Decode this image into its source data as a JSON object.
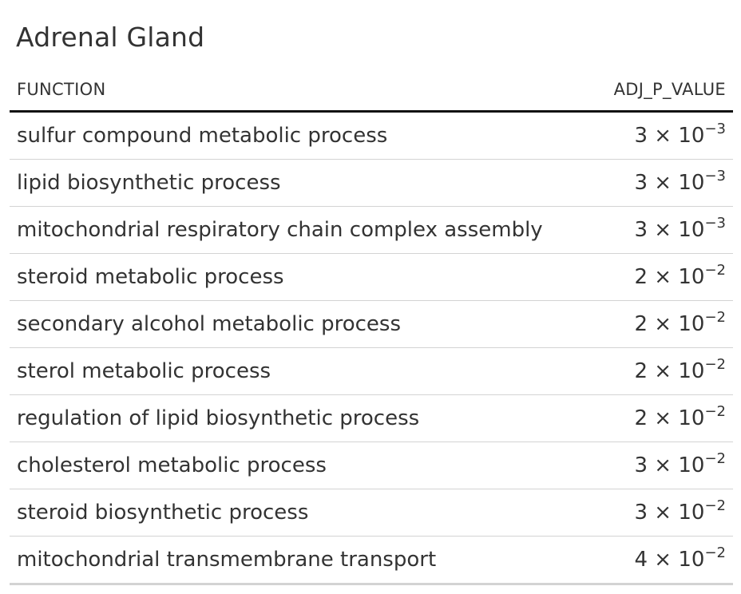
{
  "title": "Adrenal Gland",
  "table": {
    "headers": {
      "function": "FUNCTION",
      "adj_p_value": "ADJ_P_VALUE"
    },
    "rows": [
      {
        "function": "sulfur compound metabolic process",
        "mantissa": "3 × 10",
        "exponent": "−3"
      },
      {
        "function": "lipid biosynthetic process",
        "mantissa": "3 × 10",
        "exponent": "−3"
      },
      {
        "function": "mitochondrial respiratory chain complex assembly",
        "mantissa": "3 × 10",
        "exponent": "−3"
      },
      {
        "function": "steroid metabolic process",
        "mantissa": "2 × 10",
        "exponent": "−2"
      },
      {
        "function": "secondary alcohol metabolic process",
        "mantissa": "2 × 10",
        "exponent": "−2"
      },
      {
        "function": "sterol metabolic process",
        "mantissa": "2 × 10",
        "exponent": "−2"
      },
      {
        "function": "regulation of lipid biosynthetic process",
        "mantissa": "2 × 10",
        "exponent": "−2"
      },
      {
        "function": "cholesterol metabolic process",
        "mantissa": "3 × 10",
        "exponent": "−2"
      },
      {
        "function": "steroid biosynthetic process",
        "mantissa": "3 × 10",
        "exponent": "−2"
      },
      {
        "function": "mitochondrial transmembrane transport",
        "mantissa": "4 × 10",
        "exponent": "−2"
      }
    ]
  }
}
